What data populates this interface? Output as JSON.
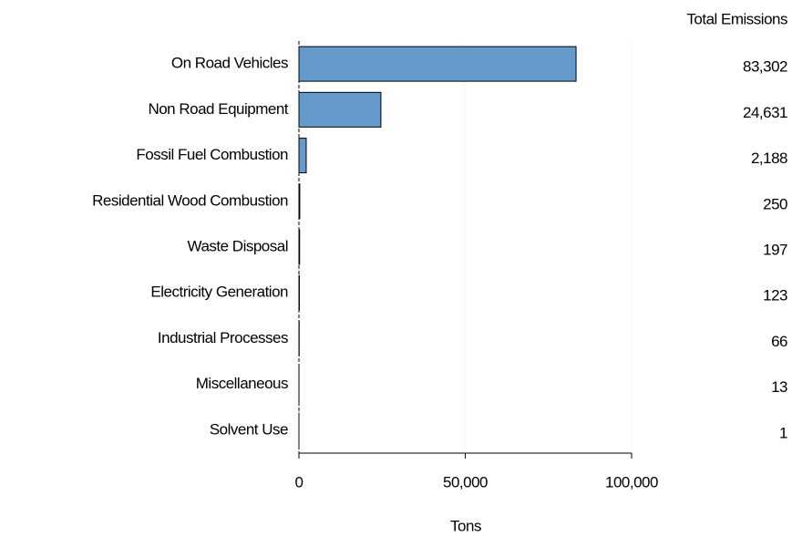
{
  "chart_data": {
    "type": "bar",
    "orientation": "horizontal",
    "column_header": "Total Emissions",
    "xlabel": "Tons",
    "categories": [
      "On Road Vehicles",
      "Non Road Equipment",
      "Fossil Fuel Combustion",
      "Residential Wood Combustion",
      "Waste Disposal",
      "Electricity Generation",
      "Industrial Processes",
      "Miscellaneous",
      "Solvent Use"
    ],
    "values": [
      83302,
      24631,
      2188,
      250,
      197,
      123,
      66,
      13,
      1
    ],
    "value_labels": [
      "83,302",
      "24,631",
      "2,188",
      "250",
      "197",
      "123",
      "66",
      "13",
      "1"
    ],
    "color": "#6699cc",
    "xlim": [
      0,
      100000
    ],
    "xticks": [
      0,
      {
        "value": 50000,
        "label": "50,000"
      },
      {
        "value": 100000,
        "label": "100,000"
      }
    ],
    "grid": true
  }
}
